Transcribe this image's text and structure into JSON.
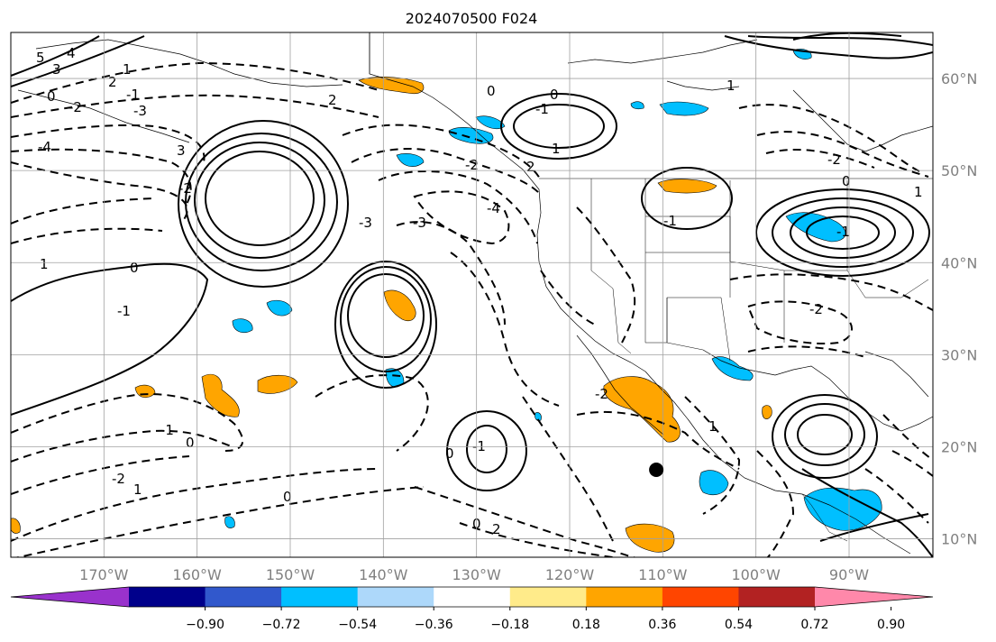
{
  "title": "2024070500 F024",
  "map": {
    "projection": "PlateCarree",
    "lon_range": [
      -180,
      -81
    ],
    "lat_range": [
      8,
      65
    ],
    "grid": true,
    "coastlines": true,
    "borders": true,
    "lon_ticks": [
      {
        "value": -170,
        "label": "170°W"
      },
      {
        "value": -160,
        "label": "160°W"
      },
      {
        "value": -150,
        "label": "150°W"
      },
      {
        "value": -140,
        "label": "140°W"
      },
      {
        "value": -130,
        "label": "130°W"
      },
      {
        "value": -120,
        "label": "120°W"
      },
      {
        "value": -110,
        "label": "110°W"
      },
      {
        "value": -100,
        "label": "100°W"
      },
      {
        "value": -90,
        "label": "90°W"
      }
    ],
    "lat_ticks": [
      {
        "value": 60,
        "label": "60°N"
      },
      {
        "value": 50,
        "label": "50°N"
      },
      {
        "value": 40,
        "label": "40°N"
      },
      {
        "value": 30,
        "label": "30°N"
      },
      {
        "value": 20,
        "label": "20°N"
      },
      {
        "value": 10,
        "label": "10°N"
      }
    ],
    "marker": {
      "lon": -110.7,
      "lat": 17.5,
      "color": "#000000"
    }
  },
  "colorbar": {
    "colors": [
      "#9932cc",
      "#00008b",
      "#3158cc",
      "#00bfff",
      "#add8fa",
      "#ffffff",
      "#ffeb8a",
      "#ffa500",
      "#ff4500",
      "#b22222",
      "#ff88aa"
    ],
    "tick_labels": [
      "−0.90",
      "−0.72",
      "−0.54",
      "−0.36",
      "−0.18",
      "0.18",
      "0.36",
      "0.54",
      "0.72",
      "0.90"
    ]
  },
  "contour_labels": [
    "5",
    "4",
    "3",
    "2",
    "1",
    "0",
    "-1",
    "-2",
    "-3",
    "-4",
    "2",
    "3",
    "-2",
    "1",
    "-1",
    "0",
    "-4",
    "-3",
    "0",
    "-1",
    "1",
    "-2",
    "2",
    "0",
    "1",
    "-1",
    "0",
    "1",
    "-2",
    "-1",
    "-2",
    "-1",
    "0",
    "-2",
    "1",
    "0",
    "0",
    "-1",
    "0",
    "2",
    "-2",
    "1",
    "-3"
  ]
}
